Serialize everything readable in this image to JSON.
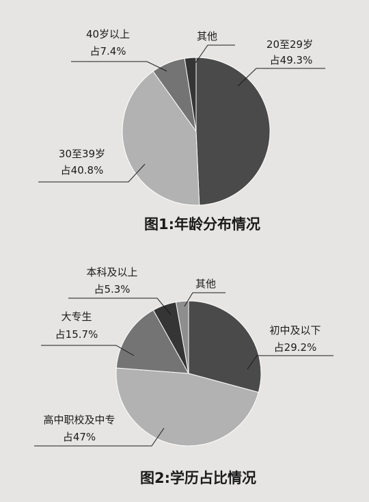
{
  "chart_data": [
    {
      "type": "pie",
      "title": "图1:年龄分布情况",
      "categories": [
        "20至29岁",
        "30至39岁",
        "40岁以上",
        "其他"
      ],
      "values": [
        49.3,
        40.8,
        7.4,
        2.5
      ],
      "labels": [
        {
          "name": "20至29岁",
          "pct": "占49.3%"
        },
        {
          "name": "30至39岁",
          "pct": "占40.8%"
        },
        {
          "name": "40岁以上",
          "pct": "占7.4%"
        },
        {
          "name": "其他",
          "pct": ""
        }
      ],
      "colors": [
        "#4a4a4a",
        "#b2b2b2",
        "#747474",
        "#353535"
      ]
    },
    {
      "type": "pie",
      "title": "图2:学历占比情况",
      "categories": [
        "初中及以下",
        "高中职校及中专",
        "大专生",
        "本科及以上",
        "其他"
      ],
      "values": [
        29.2,
        47,
        15.7,
        5.3,
        2.8
      ],
      "labels": [
        {
          "name": "初中及以下",
          "pct": "占29.2%"
        },
        {
          "name": "高中职校及中专",
          "pct": "占47%"
        },
        {
          "name": "大专生",
          "pct": "占15.7%"
        },
        {
          "name": "本科及以上",
          "pct": "占5.3%"
        },
        {
          "name": "其他",
          "pct": ""
        }
      ],
      "colors": [
        "#4a4a4a",
        "#b2b2b2",
        "#747474",
        "#353535",
        "#8e8e8e"
      ]
    }
  ]
}
